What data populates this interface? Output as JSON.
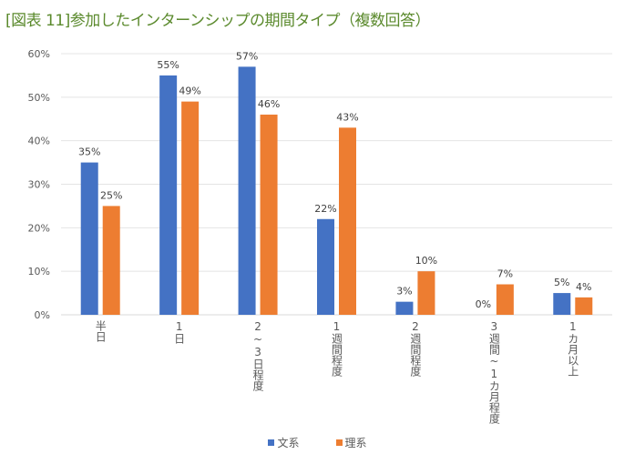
{
  "chart_data": {
    "type": "bar",
    "title": "[図表 11]参加したインターンシップの期間タイプ（複数回答）",
    "categories": [
      "半日",
      "1日",
      "2~3日程度",
      "1週間程度",
      "2週間程度",
      "3週間~1カ月程度",
      "1カ月以上"
    ],
    "series": [
      {
        "name": "文系",
        "color": "#4472c4",
        "values": [
          35,
          55,
          57,
          22,
          3,
          0,
          5
        ]
      },
      {
        "name": "理系",
        "color": "#ed7d31",
        "values": [
          25,
          49,
          46,
          43,
          10,
          7,
          4
        ]
      }
    ],
    "ylim": [
      0,
      60
    ],
    "yticks": [
      "0%",
      "10%",
      "20%",
      "30%",
      "40%",
      "50%",
      "60%"
    ],
    "value_suffix": "%",
    "grid": true,
    "legend": "bottom",
    "title_color": "#5b8a2d"
  }
}
